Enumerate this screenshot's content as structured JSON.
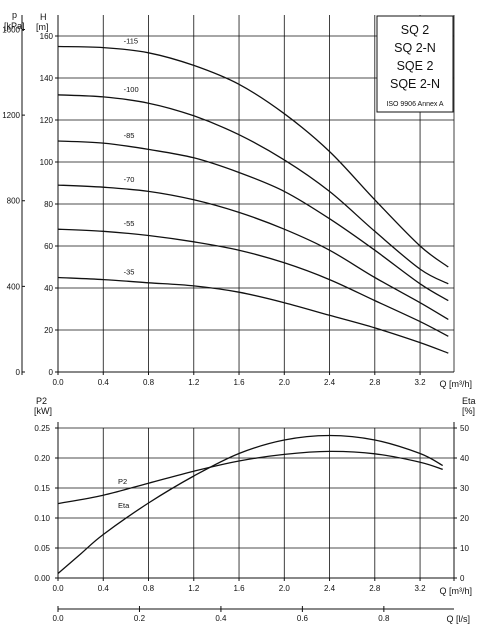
{
  "title_box": {
    "lines": [
      "SQ 2",
      "SQ 2-N",
      "SQE 2",
      "SQE 2-N"
    ],
    "note": "ISO 9906 Annex A"
  },
  "chart_data": [
    {
      "type": "line",
      "name": "head",
      "xlabel": "Q [m³/h]",
      "ylabel_left": {
        "symbol": "H",
        "unit": "[m]"
      },
      "ylabel_outer": {
        "symbol": "p",
        "unit": "[kPa]"
      },
      "xlim": [
        0,
        3.5
      ],
      "ylim": [
        0,
        170
      ],
      "x_ticks": [
        "0.0",
        "0.4",
        "0.8",
        "1.2",
        "1.6",
        "2.0",
        "2.4",
        "2.8",
        "3.2"
      ],
      "x_tick_values": [
        0,
        0.4,
        0.8,
        1.2,
        1.6,
        2.0,
        2.4,
        2.8,
        3.2
      ],
      "y_ticks": [
        "0",
        "20",
        "40",
        "60",
        "80",
        "100",
        "120",
        "140",
        "160"
      ],
      "y_tick_values": [
        0,
        20,
        40,
        60,
        80,
        100,
        120,
        140,
        160
      ],
      "p_ticks": [
        "0",
        "400",
        "800",
        "1200",
        "1600"
      ],
      "p_tick_values": [
        0,
        400,
        800,
        1200,
        1600
      ],
      "series": [
        {
          "name": "-115",
          "x": [
            0,
            0.4,
            0.8,
            1.2,
            1.6,
            2.0,
            2.4,
            2.8,
            3.2,
            3.45
          ],
          "y": [
            155,
            154.5,
            152,
            146,
            137,
            123,
            105,
            82,
            60,
            50
          ]
        },
        {
          "name": "-100",
          "x": [
            0,
            0.4,
            0.8,
            1.2,
            1.6,
            2.0,
            2.4,
            2.8,
            3.2,
            3.45
          ],
          "y": [
            132,
            131,
            128,
            122,
            113,
            101,
            86,
            67,
            49,
            42
          ]
        },
        {
          "name": "-85",
          "x": [
            0,
            0.4,
            0.8,
            1.2,
            1.6,
            2.0,
            2.4,
            2.8,
            3.2,
            3.45
          ],
          "y": [
            110,
            109,
            106,
            102,
            95,
            86,
            73,
            58,
            42,
            34
          ]
        },
        {
          "name": "-70",
          "x": [
            0,
            0.4,
            0.8,
            1.2,
            1.6,
            2.0,
            2.4,
            2.8,
            3.2,
            3.45
          ],
          "y": [
            89,
            88,
            86,
            82,
            76,
            68,
            58,
            45,
            33,
            25
          ]
        },
        {
          "name": "-55",
          "x": [
            0,
            0.4,
            0.8,
            1.2,
            1.6,
            2.0,
            2.4,
            2.8,
            3.2,
            3.45
          ],
          "y": [
            68,
            67,
            65,
            62,
            58,
            52,
            44,
            34,
            24,
            17
          ]
        },
        {
          "name": "-35",
          "x": [
            0,
            0.4,
            0.8,
            1.2,
            1.6,
            2.0,
            2.4,
            2.8,
            3.2,
            3.45
          ],
          "y": [
            45,
            44,
            42.5,
            41,
            38,
            33,
            27,
            21,
            14,
            9
          ]
        }
      ]
    },
    {
      "type": "line",
      "name": "power-efficiency",
      "xlabel": "Q [m³/h]",
      "xlabel_ls": "Q [l/s]",
      "ylabel_left": {
        "symbol": "P2",
        "unit": "[kW]"
      },
      "ylabel_right": {
        "symbol": "Eta",
        "unit": "[%]"
      },
      "xlim": [
        0,
        3.5
      ],
      "ylim_left": [
        0,
        0.25
      ],
      "ylim_right": [
        0,
        50
      ],
      "x_ticks": [
        "0.0",
        "0.4",
        "0.8",
        "1.2",
        "1.6",
        "2.0",
        "2.4",
        "2.8",
        "3.2"
      ],
      "x_tick_values": [
        0,
        0.4,
        0.8,
        1.2,
        1.6,
        2.0,
        2.4,
        2.8,
        3.2
      ],
      "ls_ticks": [
        "0.0",
        "0.2",
        "0.4",
        "0.6",
        "0.8"
      ],
      "ls_tick_values": [
        0,
        0.2,
        0.4,
        0.6,
        0.8
      ],
      "y_left_ticks": [
        "0.00",
        "0.05",
        "0.10",
        "0.15",
        "0.20",
        "0.25"
      ],
      "y_left_tick_values": [
        0,
        0.05,
        0.1,
        0.15,
        0.2,
        0.25
      ],
      "y_right_ticks": [
        "0",
        "10",
        "20",
        "30",
        "40",
        "50"
      ],
      "y_right_tick_values": [
        0,
        10,
        20,
        30,
        40,
        50
      ],
      "series": [
        {
          "name": "P2",
          "axis": "left",
          "x": [
            0,
            0.4,
            0.8,
            1.2,
            1.6,
            2.0,
            2.4,
            2.8,
            3.2,
            3.4
          ],
          "y": [
            0.124,
            0.138,
            0.158,
            0.178,
            0.195,
            0.206,
            0.211,
            0.207,
            0.193,
            0.181
          ]
        },
        {
          "name": "Eta",
          "axis": "right",
          "x": [
            0,
            0.2,
            0.4,
            0.8,
            1.2,
            1.6,
            2.0,
            2.4,
            2.8,
            3.2,
            3.4
          ],
          "y": [
            1.5,
            8,
            14.5,
            25,
            34,
            41.5,
            46,
            47.5,
            46,
            41.5,
            37.5
          ]
        }
      ]
    }
  ]
}
